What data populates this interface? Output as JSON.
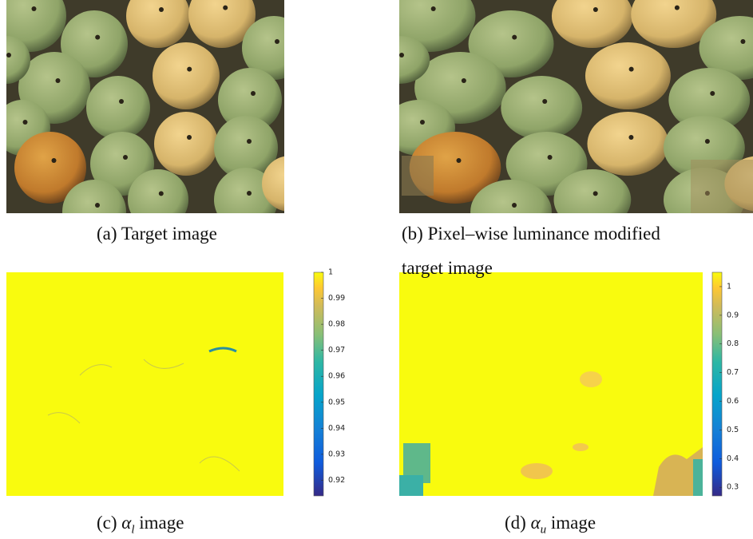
{
  "panels": [
    {
      "caption": [
        "(a) Target image"
      ]
    },
    {
      "caption": [
        "(b) Pixel–wise luminance modified",
        "target image"
      ]
    },
    {
      "caption_label": "(c)",
      "caption_symbol": "α",
      "caption_sub": "l",
      "caption_rest": "image",
      "colorbar": {
        "lim": [
          0.914,
          1
        ],
        "ticks": [
          1,
          0.99,
          0.98,
          0.97,
          0.96,
          0.95,
          0.94,
          0.93,
          0.92
        ]
      }
    },
    {
      "caption_label": "(d)",
      "caption_symbol": "α",
      "caption_sub": "u",
      "caption_rest": "image",
      "colorbar": {
        "lim": [
          0.27,
          1.05
        ],
        "ticks": [
          1,
          0.9,
          0.8,
          0.7,
          0.6,
          0.5,
          0.4,
          0.3
        ]
      }
    }
  ]
}
